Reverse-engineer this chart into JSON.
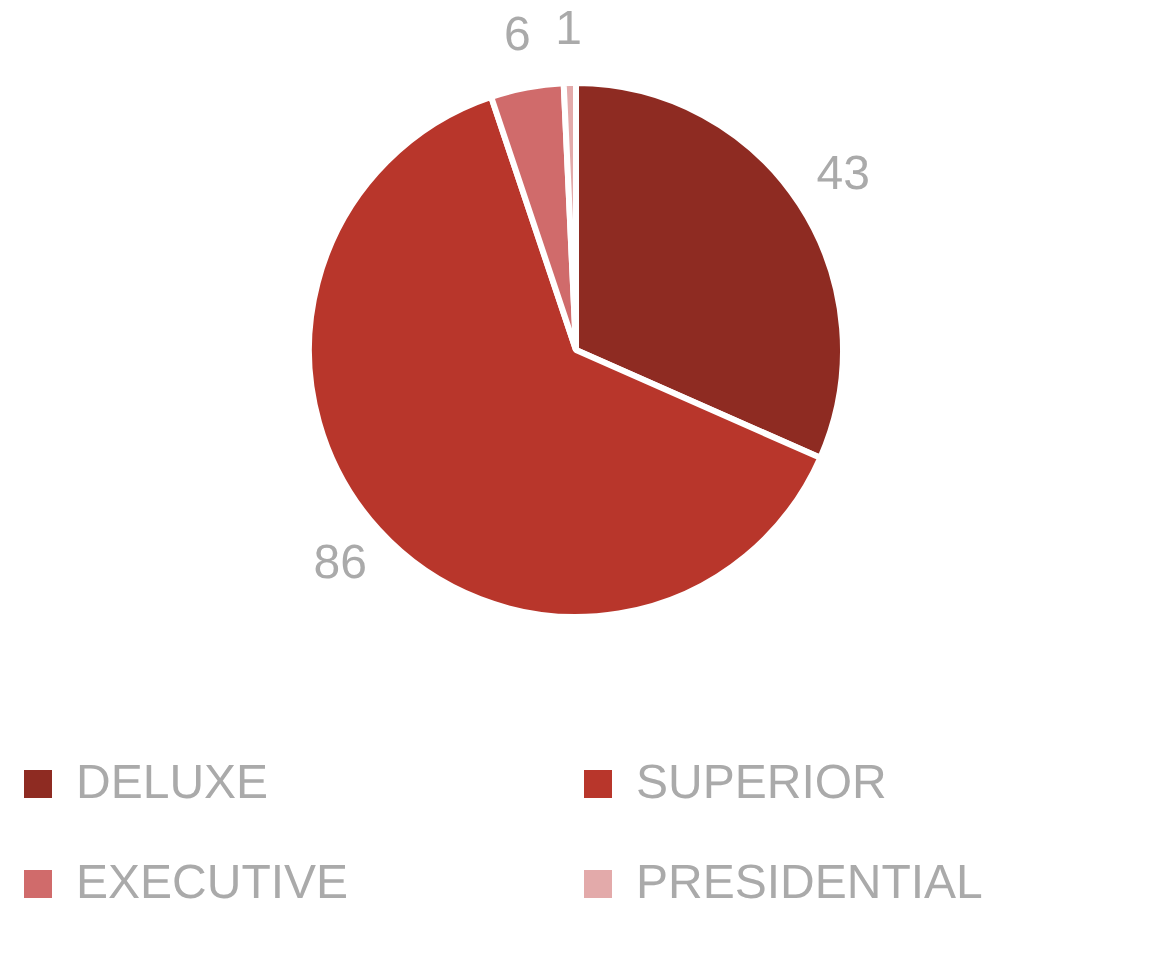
{
  "chart_data": {
    "type": "pie",
    "categories": [
      "DELUXE",
      "SUPERIOR",
      "EXECUTIVE",
      "PRESIDENTIAL"
    ],
    "values": [
      43,
      86,
      6,
      1
    ],
    "colors": [
      "#8e2b22",
      "#b8362b",
      "#d06b6b",
      "#e3aaaa"
    ],
    "data_labels": true,
    "legend": "bottom"
  }
}
